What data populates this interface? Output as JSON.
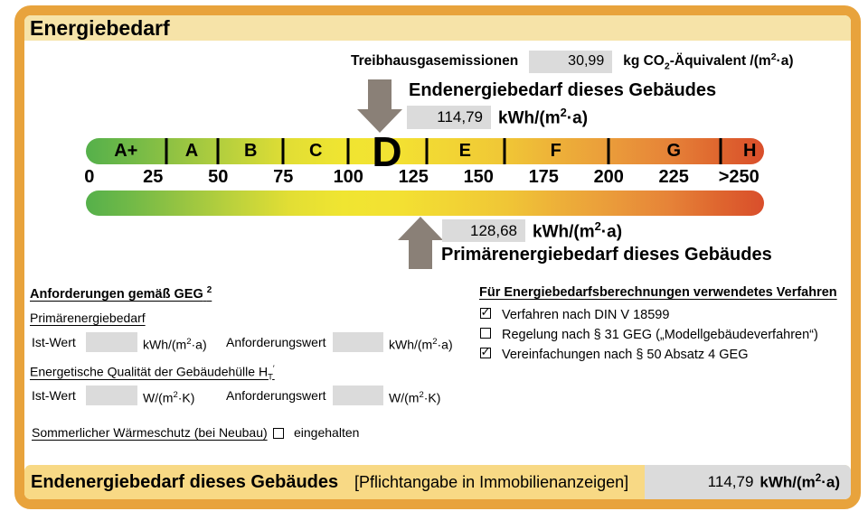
{
  "title": "Energiebedarf",
  "colors": {
    "frame_orange": "#E8A33C",
    "header_bg": "#F6E3A8",
    "footer_bg": "#F8D985",
    "box_gray": "#DBDBDB",
    "arrow_gray": "#8A8077"
  },
  "icons": {
    "check": "✓"
  },
  "emissions": {
    "label": "Treibhausgasemissionen",
    "value": "30,99",
    "unit_a": "kg CO",
    "unit_sub": "2",
    "unit_b": "-Äquivalent /(m",
    "unit_sup": "2",
    "unit_c": "·a)"
  },
  "end_energy": {
    "title": "Endenergiebedarf dieses Gebäudes",
    "value": "114,79",
    "unit_a": "kWh/(m",
    "unit_sup": "2",
    "unit_b": "·a)"
  },
  "primary_energy": {
    "title": "Primärenergiebedarf dieses Gebäudes",
    "value": "128,68",
    "unit_a": "kWh/(m",
    "unit_sup": "2",
    "unit_b": "·a)"
  },
  "scale": {
    "current_class": "D",
    "classes": [
      {
        "label": "A+",
        "pos": 5.9
      },
      {
        "label": "A",
        "pos": 15.6
      },
      {
        "label": "B",
        "pos": 24.3
      },
      {
        "label": "C",
        "pos": 33.9
      },
      {
        "label": "D",
        "pos": 44.4
      },
      {
        "label": "E",
        "pos": 55.9
      },
      {
        "label": "F",
        "pos": 69.3
      },
      {
        "label": "G",
        "pos": 86.7
      },
      {
        "label": "H",
        "pos": 97.9
      }
    ],
    "ticks": [
      11.8,
      19.5,
      29.1,
      38.7,
      50.2,
      61.7,
      77.1,
      93.6
    ],
    "numbers": [
      {
        "label": "0",
        "pos": 0.5
      },
      {
        "label": "25",
        "pos": 9.9
      },
      {
        "label": "50",
        "pos": 19.5
      },
      {
        "label": "75",
        "pos": 29.1
      },
      {
        "label": "100",
        "pos": 38.7
      },
      {
        "label": "125",
        "pos": 48.3
      },
      {
        "label": "150",
        "pos": 57.9
      },
      {
        "label": "175",
        "pos": 67.5
      },
      {
        "label": "200",
        "pos": 77.1
      },
      {
        "label": "225",
        "pos": 86.7
      },
      {
        "label": ">250",
        "pos": 96.3
      }
    ],
    "gradient": [
      "#55B04B 0%",
      "#73BA47 7%",
      "#96C442 14%",
      "#BDD23C 22%",
      "#E2DE34 30%",
      "#F0E531 38%",
      "#F3E132 46%",
      "#F2D434 54%",
      "#F0C636 62%",
      "#EDAF39 70%",
      "#EA9A3A 78%",
      "#E68338 86%",
      "#DF672F 93%",
      "#D94E2B 100%"
    ]
  },
  "geg": {
    "heading": "Anforderungen gemäß GEG",
    "heading_footnote": "2",
    "primary_heading": "Primärenergiebedarf",
    "primary_row": {
      "ist_label": "Ist-Wert",
      "ist_value": "",
      "ist_unit_a": "kWh/(m",
      "ist_unit_sup": "2",
      "ist_unit_b": "·a)",
      "req_label": "Anforderungswert",
      "req_value": "",
      "req_unit_a": "kWh/(m",
      "req_unit_sup": "2",
      "req_unit_b": "·a)"
    },
    "envelope_heading": "Energetische Qualität der Gebäudehülle H",
    "envelope_heading_sub": "T",
    "envelope_heading_sup": "′",
    "envelope_row": {
      "ist_label": "Ist-Wert",
      "ist_value": "",
      "ist_unit_a": "W/(m",
      "ist_unit_sup": "2",
      "ist_unit_b": "·K)",
      "req_label": "Anforderungswert",
      "req_value": "",
      "req_unit_a": "W/(m",
      "req_unit_sup": "2",
      "req_unit_b": "·K)"
    },
    "summer_label": "Sommerlicher Wärmeschutz (bei Neubau)",
    "summer_checked": false,
    "summer_option": "eingehalten"
  },
  "method": {
    "heading": "Für Energiebedarfsberechnungen verwendetes Verfahren",
    "items": [
      {
        "label": "Verfahren nach DIN V 18599",
        "checked": true
      },
      {
        "label": "Regelung nach § 31 GEG („Modellgebäudeverfahren“)",
        "checked": false
      },
      {
        "label": "Vereinfachungen nach § 50 Absatz 4 GEG",
        "checked": true
      }
    ]
  },
  "footer": {
    "title": "Endenergiebedarf dieses Gebäudes",
    "note": "[Pflichtangabe in Immobilienanzeigen]",
    "value": "114,79",
    "unit_a": "kWh/(m",
    "unit_sup": "2",
    "unit_b": "·a)"
  }
}
